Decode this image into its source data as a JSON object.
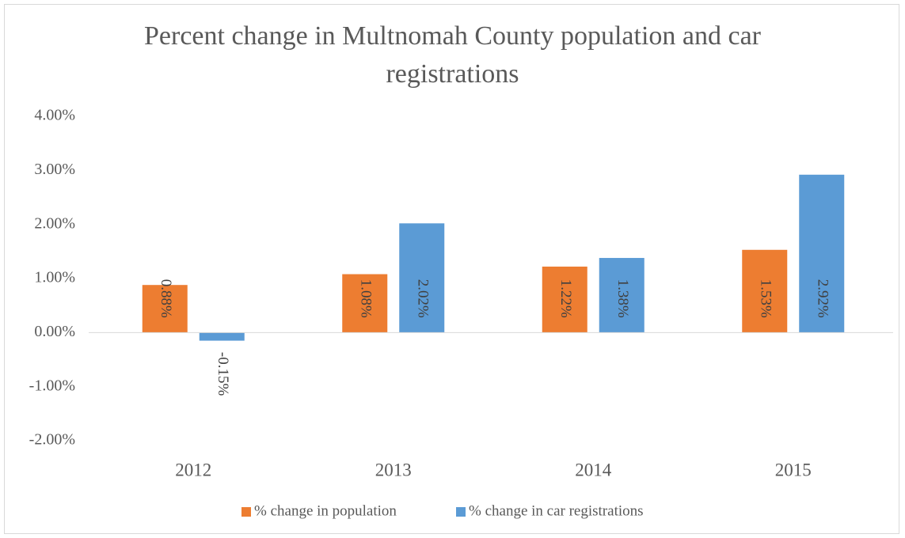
{
  "chart_data": {
    "type": "bar",
    "title": "Percent change in Multnomah County population and car registrations",
    "categories": [
      "2012",
      "2013",
      "2014",
      "2015"
    ],
    "series": [
      {
        "name": "% change in population",
        "color": "#ed7d31",
        "values": [
          0.88,
          1.08,
          1.22,
          1.53
        ],
        "value_labels": [
          "0.88%",
          "1.08%",
          "1.22%",
          "1.53%"
        ]
      },
      {
        "name": "% change in car registrations",
        "color": "#5b9bd5",
        "values": [
          -0.15,
          2.02,
          1.38,
          2.92
        ],
        "value_labels": [
          "-0.15%",
          "2.02%",
          "1.38%",
          "2.92%"
        ]
      }
    ],
    "ylim": [
      -2,
      4
    ],
    "yticks": [
      {
        "value": -2,
        "label": "-2.00%"
      },
      {
        "value": -1,
        "label": "-1.00%"
      },
      {
        "value": 0,
        "label": "0.00%"
      },
      {
        "value": 1,
        "label": "1.00%"
      },
      {
        "value": 2,
        "label": "2.00%"
      },
      {
        "value": 3,
        "label": "3.00%"
      },
      {
        "value": 4,
        "label": "4.00%"
      }
    ],
    "grid": false,
    "legend": "bottom"
  }
}
